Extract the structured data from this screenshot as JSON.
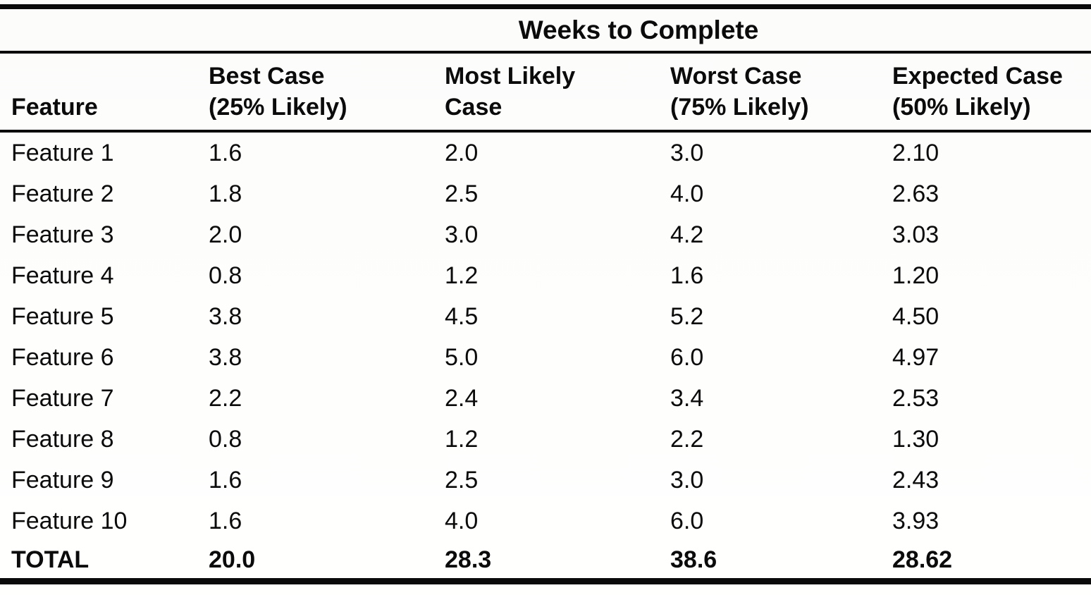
{
  "table": {
    "spanner_title": "Weeks to Complete",
    "headers": [
      [
        "Feature"
      ],
      [
        "Best Case",
        "(25% Likely)"
      ],
      [
        "Most Likely",
        "Case"
      ],
      [
        "Worst Case",
        "(75% Likely)"
      ],
      [
        "Expected Case",
        "(50% Likely)"
      ]
    ],
    "rows": [
      [
        "Feature 1",
        "1.6",
        "2.0",
        "3.0",
        "2.10"
      ],
      [
        "Feature 2",
        "1.8",
        "2.5",
        "4.0",
        "2.63"
      ],
      [
        "Feature 3",
        "2.0",
        "3.0",
        "4.2",
        "3.03"
      ],
      [
        "Feature 4",
        "0.8",
        "1.2",
        "1.6",
        "1.20"
      ],
      [
        "Feature 5",
        "3.8",
        "4.5",
        "5.2",
        "4.50"
      ],
      [
        "Feature 6",
        "3.8",
        "5.0",
        "6.0",
        "4.97"
      ],
      [
        "Feature 7",
        "2.2",
        "2.4",
        "3.4",
        "2.53"
      ],
      [
        "Feature 8",
        "0.8",
        "1.2",
        "2.2",
        "1.30"
      ],
      [
        "Feature 9",
        "1.6",
        "2.5",
        "3.0",
        "2.43"
      ],
      [
        "Feature 10",
        "1.6",
        "4.0",
        "6.0",
        "3.93"
      ]
    ],
    "total_row": [
      "TOTAL",
      "20.0",
      "28.3",
      "38.6",
      "28.62"
    ],
    "colors": {
      "ink": "#0b0b0b",
      "paper": "#fffffe"
    }
  }
}
